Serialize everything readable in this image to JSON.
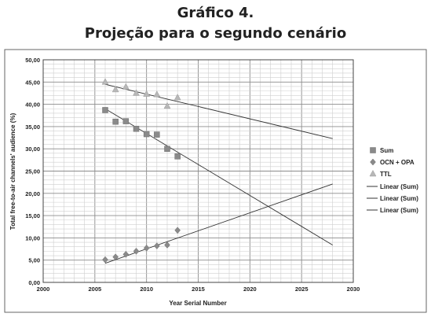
{
  "figure": {
    "title_line1": "Gráfico 4.",
    "title_line2": "Projeção para o segundo cenário"
  },
  "chart_data": {
    "type": "scatter",
    "xlabel": "Year Serial Number",
    "ylabel": "Total free-to-air channels' audience (%)",
    "xlim": [
      2000,
      2030
    ],
    "ylim": [
      0,
      50
    ],
    "x_ticks": [
      2000,
      2005,
      2010,
      2015,
      2020,
      2025,
      2030
    ],
    "y_ticks": [
      "0,00",
      "5,00",
      "10,00",
      "15,00",
      "20,00",
      "25,00",
      "30,00",
      "35,00",
      "40,00",
      "45,00",
      "50,00"
    ],
    "grid": true,
    "legend_position": "right",
    "series": [
      {
        "name": "Sum",
        "marker": "square",
        "color": "#8a8a8a",
        "x": [
          2006,
          2007,
          2008,
          2009,
          2010,
          2011,
          2012,
          2013
        ],
        "y": [
          38.7,
          36.1,
          36.2,
          34.5,
          33.3,
          33.2,
          30.0,
          28.3
        ]
      },
      {
        "name": "OCN + OPA",
        "marker": "diamond",
        "color": "#8a8a8a",
        "x": [
          2006,
          2007,
          2008,
          2009,
          2010,
          2011,
          2012,
          2013
        ],
        "y": [
          5.1,
          5.7,
          6.3,
          7.0,
          7.7,
          8.2,
          8.4,
          11.7
        ]
      },
      {
        "name": "TTL",
        "marker": "triangle",
        "color": "#b8b8b8",
        "x": [
          2006,
          2007,
          2008,
          2009,
          2010,
          2011,
          2012,
          2013
        ],
        "y": [
          45.0,
          43.3,
          43.9,
          42.5,
          42.3,
          42.2,
          39.6,
          41.5
        ]
      }
    ],
    "trendlines": [
      {
        "name": "Linear (Sum)",
        "color": "#333333",
        "x": [
          2006,
          2028
        ],
        "y": [
          44.5,
          32.3
        ]
      },
      {
        "name": "Linear (Sum)",
        "color": "#333333",
        "x": [
          2006,
          2028
        ],
        "y": [
          4.3,
          22.1
        ]
      },
      {
        "name": "Linear (Sum)",
        "color": "#333333",
        "x": [
          2006,
          2028
        ],
        "y": [
          39.0,
          8.4
        ]
      }
    ]
  }
}
